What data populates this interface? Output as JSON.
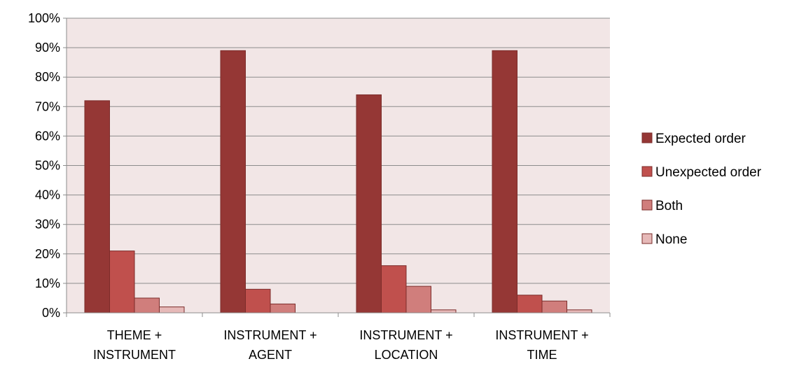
{
  "chart_data": {
    "type": "bar",
    "categories": [
      [
        "THEME +",
        "INSTRUMENT"
      ],
      [
        "INSTRUMENT +",
        "AGENT"
      ],
      [
        "INSTRUMENT +",
        "LOCATION"
      ],
      [
        "INSTRUMENT +",
        "TIME"
      ]
    ],
    "series": [
      {
        "name": "Expected order",
        "color": "#953735",
        "values": [
          72,
          89,
          74,
          89
        ]
      },
      {
        "name": "Unexpected order",
        "color": "#C0504D",
        "values": [
          21,
          8,
          16,
          6
        ]
      },
      {
        "name": "Both",
        "color": "#D07E7C",
        "values": [
          5,
          3,
          9,
          4
        ]
      },
      {
        "name": "None",
        "color": "#E6B9B8",
        "values": [
          2,
          0,
          1,
          1
        ]
      }
    ],
    "ylim": [
      0,
      100
    ],
    "yticks": [
      "0%",
      "10%",
      "20%",
      "30%",
      "40%",
      "50%",
      "60%",
      "70%",
      "80%",
      "90%",
      "100%"
    ],
    "grid": true,
    "plot_background": "#F2E6E6",
    "legend_position": "right",
    "title": "",
    "xlabel": "",
    "ylabel": ""
  }
}
